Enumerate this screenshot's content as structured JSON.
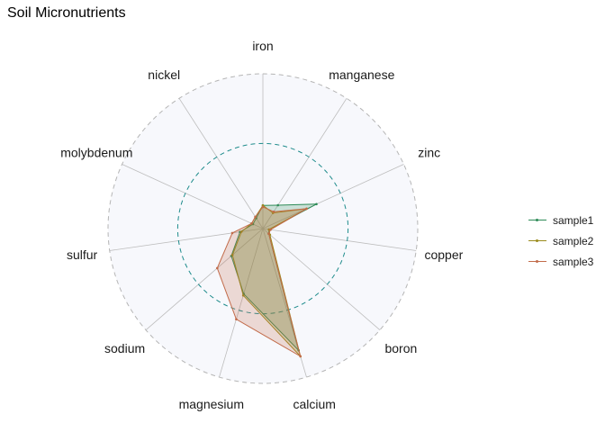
{
  "chart_data": {
    "type": "radar",
    "title": "Soil Micronutrients",
    "axes": [
      "iron",
      "manganese",
      "zinc",
      "copper",
      "boron",
      "calcium",
      "magnesium",
      "sodium",
      "sulfur",
      "molybdenum",
      "nickel"
    ],
    "rmax": 1.0,
    "reference_ring": 0.55,
    "grid": true,
    "legend_position": "right",
    "series": [
      {
        "name": "sample1",
        "color": "#2e8b57",
        "values": [
          0.15,
          0.18,
          0.38,
          0.04,
          0.05,
          0.82,
          0.44,
          0.27,
          0.15,
          0.07,
          0.08
        ]
      },
      {
        "name": "sample2",
        "color": "#9a8a1c",
        "values": [
          0.15,
          0.12,
          0.31,
          0.04,
          0.06,
          0.86,
          0.45,
          0.26,
          0.14,
          0.08,
          0.09
        ]
      },
      {
        "name": "sample3",
        "color": "#c26b4a",
        "values": [
          0.14,
          0.13,
          0.31,
          0.05,
          0.05,
          0.86,
          0.61,
          0.39,
          0.2,
          0.08,
          0.09
        ]
      }
    ]
  }
}
